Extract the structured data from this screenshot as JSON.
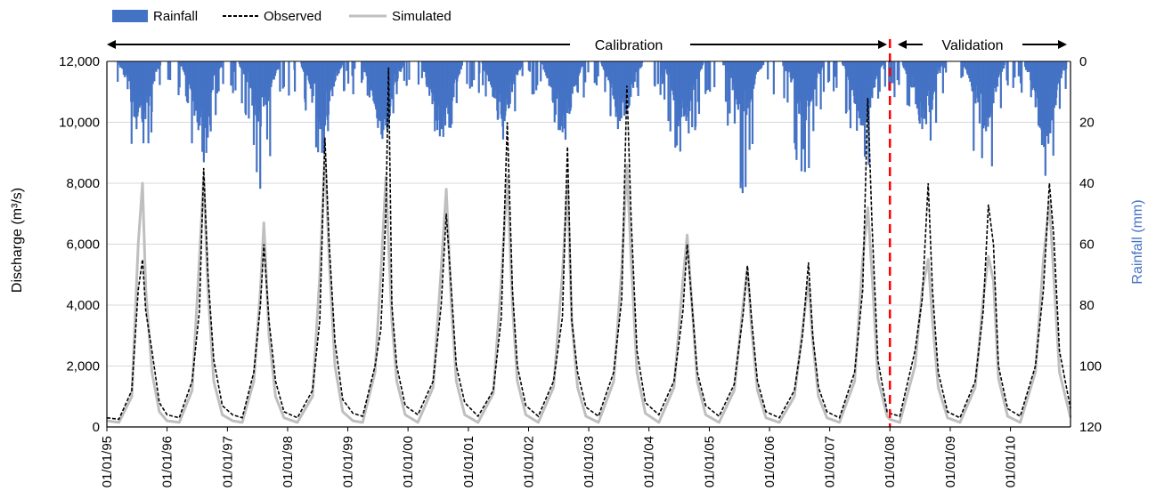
{
  "chart_data": {
    "type": "line",
    "legend": {
      "placement": "top-left",
      "items": [
        {
          "label": "Rainfall",
          "kind": "bar",
          "color": "#4472C4"
        },
        {
          "label": "Observed",
          "kind": "dashed-line",
          "color": "#000000"
        },
        {
          "label": "Simulated",
          "kind": "line",
          "color": "#BFBFBF"
        }
      ]
    },
    "periods": [
      {
        "label": "Calibration",
        "start": "1995-01-01",
        "end": "2008-01-01"
      },
      {
        "label": "Validation",
        "start": "2008-01-01",
        "end": "2010-12-31"
      }
    ],
    "split_date": "2008-01-01",
    "split_color": "#FF0000",
    "x_ticks": [
      "01/01/95",
      "01/01/96",
      "01/01/97",
      "01/01/98",
      "01/01/99",
      "01/01/00",
      "01/01/01",
      "01/01/02",
      "01/01/03",
      "01/01/04",
      "01/01/05",
      "01/01/06",
      "01/01/07",
      "01/01/08",
      "01/01/09",
      "01/01/10"
    ],
    "xlim": [
      "1995-01-01",
      "2010-12-31"
    ],
    "ylabel": "Discharge (m³/s)",
    "ylim": [
      0,
      12000
    ],
    "y_ticks": [
      "0",
      "2,000",
      "4,000",
      "6,000",
      "8,000",
      "10,000",
      "12,000"
    ],
    "y2label": "Rainfall (mm)",
    "y2lim": [
      0,
      120
    ],
    "y2_inverted": true,
    "y2_ticks": [
      "0",
      "20",
      "40",
      "60",
      "80",
      "100",
      "120"
    ],
    "grid": true,
    "series": [
      {
        "name": "Observed",
        "color": "#000000",
        "points": [
          [
            "1995-01-01",
            300
          ],
          [
            "1995-03-15",
            250
          ],
          [
            "1995-06-01",
            1200
          ],
          [
            "1995-07-10",
            4500
          ],
          [
            "1995-08-05",
            5500
          ],
          [
            "1995-08-25",
            3800
          ],
          [
            "1995-10-01",
            2500
          ],
          [
            "1995-11-15",
            800
          ],
          [
            "1996-01-01",
            400
          ],
          [
            "1996-03-15",
            300
          ],
          [
            "1996-06-01",
            1500
          ],
          [
            "1996-07-15",
            3800
          ],
          [
            "1996-08-10",
            8500
          ],
          [
            "1996-09-05",
            5000
          ],
          [
            "1996-10-10",
            2200
          ],
          [
            "1996-12-01",
            700
          ],
          [
            "1997-02-01",
            400
          ],
          [
            "1997-04-01",
            300
          ],
          [
            "1997-06-10",
            1800
          ],
          [
            "1997-07-20",
            4000
          ],
          [
            "1997-08-10",
            6000
          ],
          [
            "1997-09-10",
            3500
          ],
          [
            "1997-10-20",
            1500
          ],
          [
            "1997-12-10",
            500
          ],
          [
            "1998-03-01",
            300
          ],
          [
            "1998-06-01",
            1200
          ],
          [
            "1998-07-15",
            3500
          ],
          [
            "1998-08-15",
            9500
          ],
          [
            "1998-09-10",
            6000
          ],
          [
            "1998-10-15",
            2800
          ],
          [
            "1998-12-01",
            900
          ],
          [
            "1999-02-01",
            450
          ],
          [
            "1999-04-01",
            350
          ],
          [
            "1999-06-15",
            2000
          ],
          [
            "1999-07-20",
            3200
          ],
          [
            "1999-08-20",
            7000
          ],
          [
            "1999-09-05",
            11800
          ],
          [
            "1999-09-25",
            4000
          ],
          [
            "1999-10-25",
            2000
          ],
          [
            "1999-12-15",
            700
          ],
          [
            "2000-03-01",
            400
          ],
          [
            "2000-06-01",
            1500
          ],
          [
            "2000-07-20",
            4000
          ],
          [
            "2000-08-20",
            7000
          ],
          [
            "2000-09-20",
            4500
          ],
          [
            "2000-10-20",
            2000
          ],
          [
            "2000-12-10",
            800
          ],
          [
            "2001-03-01",
            350
          ],
          [
            "2001-06-01",
            1200
          ],
          [
            "2001-07-20",
            3600
          ],
          [
            "2001-08-25",
            10000
          ],
          [
            "2001-09-25",
            4500
          ],
          [
            "2001-10-25",
            2000
          ],
          [
            "2001-12-15",
            700
          ],
          [
            "2002-03-01",
            350
          ],
          [
            "2002-06-01",
            1500
          ],
          [
            "2002-07-25",
            3600
          ],
          [
            "2002-08-25",
            9200
          ],
          [
            "2002-09-20",
            3500
          ],
          [
            "2002-10-25",
            1800
          ],
          [
            "2002-12-15",
            650
          ],
          [
            "2003-03-01",
            350
          ],
          [
            "2003-06-01",
            1800
          ],
          [
            "2003-07-20",
            4200
          ],
          [
            "2003-08-20",
            11200
          ],
          [
            "2003-09-15",
            6800
          ],
          [
            "2003-10-20",
            2500
          ],
          [
            "2003-12-10",
            800
          ],
          [
            "2004-03-01",
            400
          ],
          [
            "2004-06-01",
            1500
          ],
          [
            "2004-07-25",
            3800
          ],
          [
            "2004-08-20",
            6000
          ],
          [
            "2004-09-15",
            4200
          ],
          [
            "2004-10-20",
            1800
          ],
          [
            "2004-12-10",
            700
          ],
          [
            "2005-03-01",
            350
          ],
          [
            "2005-06-01",
            1400
          ],
          [
            "2005-07-25",
            3700
          ],
          [
            "2005-08-20",
            5300
          ],
          [
            "2005-09-15",
            3500
          ],
          [
            "2005-10-20",
            1500
          ],
          [
            "2005-12-10",
            500
          ],
          [
            "2006-03-01",
            300
          ],
          [
            "2006-06-01",
            1200
          ],
          [
            "2006-07-20",
            3000
          ],
          [
            "2006-08-25",
            5400
          ],
          [
            "2006-09-20",
            3000
          ],
          [
            "2006-10-25",
            1300
          ],
          [
            "2006-12-15",
            500
          ],
          [
            "2007-03-01",
            300
          ],
          [
            "2007-06-01",
            1800
          ],
          [
            "2007-07-20",
            4500
          ],
          [
            "2007-08-20",
            10800
          ],
          [
            "2007-09-15",
            6600
          ],
          [
            "2007-10-20",
            2200
          ],
          [
            "2007-12-15",
            500
          ],
          [
            "2008-01-01",
            450
          ],
          [
            "2008-03-01",
            350
          ],
          [
            "2008-06-01",
            2500
          ],
          [
            "2008-07-15",
            4200
          ],
          [
            "2008-08-20",
            8000
          ],
          [
            "2008-09-15",
            4500
          ],
          [
            "2008-10-20",
            1800
          ],
          [
            "2008-12-15",
            500
          ],
          [
            "2009-03-01",
            300
          ],
          [
            "2009-06-01",
            1500
          ],
          [
            "2009-07-20",
            3800
          ],
          [
            "2009-08-20",
            7300
          ],
          [
            "2009-09-20",
            6000
          ],
          [
            "2009-10-20",
            2000
          ],
          [
            "2009-12-15",
            600
          ],
          [
            "2010-03-01",
            350
          ],
          [
            "2010-06-01",
            2000
          ],
          [
            "2010-07-20",
            4500
          ],
          [
            "2010-08-25",
            8000
          ],
          [
            "2010-09-20",
            6300
          ],
          [
            "2010-10-25",
            2500
          ],
          [
            "2010-12-31",
            600
          ]
        ]
      },
      {
        "name": "Simulated",
        "color": "#BFBFBF",
        "points": [
          [
            "1995-01-01",
            200
          ],
          [
            "1995-03-15",
            150
          ],
          [
            "1995-06-01",
            1000
          ],
          [
            "1995-07-10",
            6000
          ],
          [
            "1995-08-05",
            8000
          ],
          [
            "1995-08-25",
            4500
          ],
          [
            "1995-10-01",
            1800
          ],
          [
            "1995-11-15",
            500
          ],
          [
            "1996-01-01",
            200
          ],
          [
            "1996-03-15",
            150
          ],
          [
            "1996-06-01",
            1200
          ],
          [
            "1996-07-15",
            5500
          ],
          [
            "1996-08-10",
            8200
          ],
          [
            "1996-09-05",
            4500
          ],
          [
            "1996-10-10",
            1500
          ],
          [
            "1996-12-01",
            400
          ],
          [
            "1997-02-01",
            200
          ],
          [
            "1997-04-01",
            150
          ],
          [
            "1997-06-10",
            1500
          ],
          [
            "1997-07-20",
            4500
          ],
          [
            "1997-08-10",
            6700
          ],
          [
            "1997-09-10",
            3000
          ],
          [
            "1997-10-20",
            1000
          ],
          [
            "1997-12-10",
            300
          ],
          [
            "1998-03-01",
            150
          ],
          [
            "1998-06-01",
            1000
          ],
          [
            "1998-07-15",
            5000
          ],
          [
            "1998-08-15",
            9000
          ],
          [
            "1998-09-10",
            5500
          ],
          [
            "1998-10-15",
            2000
          ],
          [
            "1998-12-01",
            500
          ],
          [
            "1999-02-01",
            200
          ],
          [
            "1999-04-01",
            150
          ],
          [
            "1999-06-15",
            1800
          ],
          [
            "1999-07-20",
            5000
          ],
          [
            "1999-08-20",
            8200
          ],
          [
            "1999-09-05",
            6000
          ],
          [
            "1999-09-25",
            3500
          ],
          [
            "1999-10-25",
            1500
          ],
          [
            "1999-12-15",
            400
          ],
          [
            "2000-03-01",
            150
          ],
          [
            "2000-06-01",
            1300
          ],
          [
            "2000-07-20",
            5200
          ],
          [
            "2000-08-20",
            7800
          ],
          [
            "2000-09-20",
            4000
          ],
          [
            "2000-10-20",
            1500
          ],
          [
            "2000-12-10",
            400
          ],
          [
            "2001-03-01",
            150
          ],
          [
            "2001-06-01",
            1100
          ],
          [
            "2001-07-20",
            4800
          ],
          [
            "2001-08-25",
            8200
          ],
          [
            "2001-09-25",
            4000
          ],
          [
            "2001-10-25",
            1500
          ],
          [
            "2001-12-15",
            400
          ],
          [
            "2002-03-01",
            150
          ],
          [
            "2002-06-01",
            1300
          ],
          [
            "2002-07-25",
            5000
          ],
          [
            "2002-08-25",
            8000
          ],
          [
            "2002-09-20",
            3500
          ],
          [
            "2002-10-25",
            1300
          ],
          [
            "2002-12-15",
            350
          ],
          [
            "2003-03-01",
            150
          ],
          [
            "2003-06-01",
            1500
          ],
          [
            "2003-07-20",
            5200
          ],
          [
            "2003-08-20",
            8600
          ],
          [
            "2003-09-15",
            5500
          ],
          [
            "2003-10-20",
            1800
          ],
          [
            "2003-12-10",
            450
          ],
          [
            "2004-03-01",
            150
          ],
          [
            "2004-06-01",
            1300
          ],
          [
            "2004-07-25",
            4800
          ],
          [
            "2004-08-20",
            6300
          ],
          [
            "2004-09-15",
            4200
          ],
          [
            "2004-10-20",
            1500
          ],
          [
            "2004-12-10",
            400
          ],
          [
            "2005-03-01",
            150
          ],
          [
            "2005-06-01",
            1200
          ],
          [
            "2005-07-25",
            4000
          ],
          [
            "2005-08-20",
            5200
          ],
          [
            "2005-09-15",
            3200
          ],
          [
            "2005-10-20",
            1200
          ],
          [
            "2005-12-10",
            300
          ],
          [
            "2006-03-01",
            150
          ],
          [
            "2006-06-01",
            1000
          ],
          [
            "2006-07-20",
            3200
          ],
          [
            "2006-08-25",
            4800
          ],
          [
            "2006-09-20",
            2800
          ],
          [
            "2006-10-25",
            1000
          ],
          [
            "2006-12-15",
            300
          ],
          [
            "2007-03-01",
            150
          ],
          [
            "2007-06-01",
            1500
          ],
          [
            "2007-07-20",
            5500
          ],
          [
            "2007-08-20",
            7200
          ],
          [
            "2007-09-15",
            5000
          ],
          [
            "2007-10-20",
            1600
          ],
          [
            "2007-12-15",
            350
          ],
          [
            "2008-01-01",
            250
          ],
          [
            "2008-03-01",
            150
          ],
          [
            "2008-06-01",
            2000
          ],
          [
            "2008-07-15",
            4500
          ],
          [
            "2008-08-20",
            5500
          ],
          [
            "2008-09-15",
            3500
          ],
          [
            "2008-10-20",
            1300
          ],
          [
            "2008-12-15",
            300
          ],
          [
            "2009-03-01",
            150
          ],
          [
            "2009-06-01",
            1300
          ],
          [
            "2009-07-20",
            4200
          ],
          [
            "2009-08-20",
            5600
          ],
          [
            "2009-09-20",
            4800
          ],
          [
            "2009-10-20",
            1600
          ],
          [
            "2009-12-15",
            350
          ],
          [
            "2010-03-01",
            150
          ],
          [
            "2010-06-01",
            1800
          ],
          [
            "2010-07-20",
            5500
          ],
          [
            "2010-08-25",
            7400
          ],
          [
            "2010-09-20",
            5000
          ],
          [
            "2010-10-25",
            1800
          ],
          [
            "2010-12-31",
            300
          ]
        ]
      },
      {
        "name": "Rainfall",
        "color": "#4472C4",
        "axis": "right-inverted",
        "seasons": [
          {
            "peak": "1995-07-15",
            "depth": 20,
            "max_spike": 42
          },
          {
            "peak": "1996-07-20",
            "depth": 20,
            "max_spike": 35
          },
          {
            "peak": "1997-07-10",
            "depth": 18,
            "max_spike": 44
          },
          {
            "peak": "1998-07-20",
            "depth": 21,
            "max_spike": 38
          },
          {
            "peak": "1999-07-25",
            "depth": 22,
            "max_spike": 25
          },
          {
            "peak": "2000-07-20",
            "depth": 22,
            "max_spike": 28
          },
          {
            "peak": "2001-07-20",
            "depth": 18,
            "max_spike": 30
          },
          {
            "peak": "2002-07-20",
            "depth": 20,
            "max_spike": 28
          },
          {
            "peak": "2003-07-15",
            "depth": 17,
            "max_spike": 30
          },
          {
            "peak": "2004-07-20",
            "depth": 18,
            "max_spike": 40
          },
          {
            "peak": "2005-07-20",
            "depth": 16,
            "max_spike": 44
          },
          {
            "peak": "2006-07-20",
            "depth": 17,
            "max_spike": 40
          },
          {
            "peak": "2007-07-15",
            "depth": 18,
            "max_spike": 42
          },
          {
            "peak": "2008-07-15",
            "depth": 19,
            "max_spike": 36
          },
          {
            "peak": "2009-07-20",
            "depth": 20,
            "max_spike": 50
          },
          {
            "peak": "2010-07-25",
            "depth": 24,
            "max_spike": 38
          }
        ]
      }
    ]
  }
}
